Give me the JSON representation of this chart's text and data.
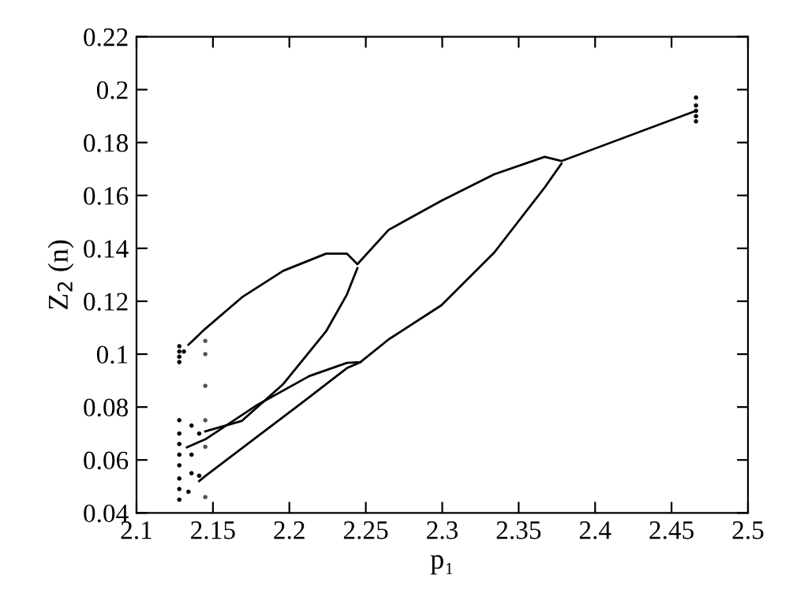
{
  "chart_data": {
    "type": "line",
    "xlabel": "p₁",
    "ylabel": "Z$_{2}$ (n)",
    "xlim": [
      2.1,
      2.5
    ],
    "ylim": [
      0.04,
      0.22
    ],
    "xticks": [
      2.1,
      2.15,
      2.2,
      2.25,
      2.3,
      2.35,
      2.4,
      2.45,
      2.5
    ],
    "yticks": [
      0.04,
      0.06,
      0.08,
      0.1,
      0.12,
      0.14,
      0.16,
      0.18,
      0.2,
      0.22
    ],
    "grid": false,
    "marker": "none",
    "line_style": "solid",
    "series": [
      {
        "color": "#000000",
        "x": [
          2.466,
          2.378,
          2.367,
          2.334,
          2.2995,
          2.265,
          2.2445,
          2.2376,
          2.224,
          2.196,
          2.169,
          2.145,
          2.134
        ],
        "values": [
          0.192,
          0.173,
          0.1746,
          0.168,
          0.158,
          0.147,
          0.134,
          0.138,
          0.138,
          0.1315,
          0.1215,
          0.1096,
          0.1036
        ]
      },
      {
        "color": "#000000",
        "x": [
          2.2445,
          2.2376,
          2.224,
          2.196,
          2.169,
          2.145
        ],
        "values": [
          0.1325,
          0.1225,
          0.1086,
          0.0887,
          0.0748,
          0.0708
        ]
      },
      {
        "color": "#000000",
        "x": [
          2.378,
          2.367,
          2.334,
          2.2995,
          2.265,
          2.2465,
          2.2376,
          2.213,
          2.179,
          2.145,
          2.133
        ],
        "values": [
          0.172,
          0.163,
          0.1384,
          0.1185,
          0.1056,
          0.097,
          0.0967,
          0.0917,
          0.0808,
          0.0678,
          0.0648
        ]
      },
      {
        "color": "#000000",
        "x": [
          2.2465,
          2.2376,
          2.213,
          2.179,
          2.145,
          2.141
        ],
        "values": [
          0.097,
          0.0947,
          0.0837,
          0.0688,
          0.0539,
          0.052
        ]
      },
      {
        "type": "scatter",
        "color": "#000000",
        "x": [
          2.466,
          2.466,
          2.466,
          2.466,
          2.466
        ],
        "values": [
          0.188,
          0.19,
          0.192,
          0.194,
          0.197
        ]
      },
      {
        "type": "scatter",
        "color": "#000000",
        "x": [
          2.128,
          2.128,
          2.128,
          2.128,
          2.131
        ],
        "values": [
          0.097,
          0.099,
          0.101,
          0.103,
          0.101
        ]
      },
      {
        "type": "scatter",
        "color": "#000000",
        "x": [
          2.128,
          2.128,
          2.128,
          2.128,
          2.128,
          2.136,
          2.141,
          2.136
        ],
        "values": [
          0.058,
          0.062,
          0.066,
          0.07,
          0.075,
          0.073,
          0.07,
          0.062
        ]
      },
      {
        "type": "scatter",
        "color": "#000000",
        "x": [
          2.128,
          2.128,
          2.128,
          2.136,
          2.141,
          2.134
        ],
        "values": [
          0.045,
          0.049,
          0.053,
          0.055,
          0.054,
          0.048
        ]
      },
      {
        "type": "scatter",
        "color": "#555555",
        "x": [
          2.145,
          2.145,
          2.145,
          2.145,
          2.145,
          2.145
        ],
        "values": [
          0.105,
          0.1,
          0.088,
          0.075,
          0.065,
          0.046
        ]
      }
    ]
  }
}
